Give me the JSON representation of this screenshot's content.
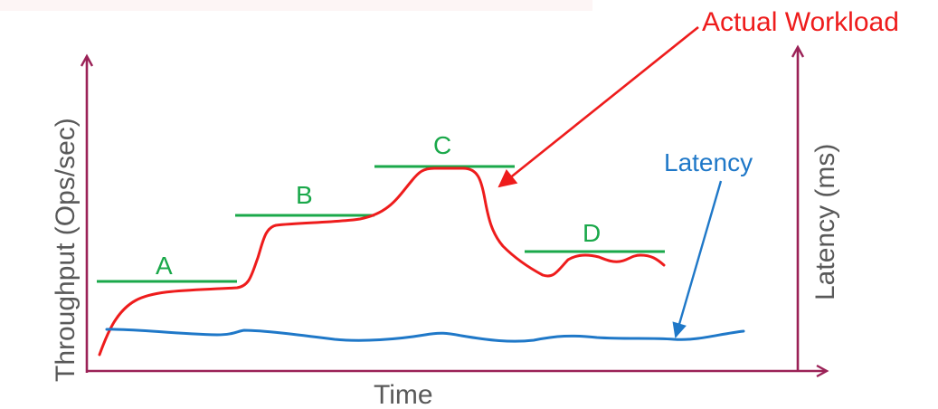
{
  "axes": {
    "left_label": "Throughput (Ops/sec)",
    "right_label": "Latency (ms)",
    "bottom_label": "Time"
  },
  "phases": [
    {
      "label": "A"
    },
    {
      "label": "B"
    },
    {
      "label": "C"
    },
    {
      "label": "D"
    }
  ],
  "callouts": {
    "workload": "Actual Workload",
    "latency": "Latency"
  },
  "colors": {
    "axis": "#9b2257",
    "workload": "#ee1c1c",
    "latency": "#1f78c8",
    "phase": "#1aa84a",
    "axis_text": "#595959"
  }
}
